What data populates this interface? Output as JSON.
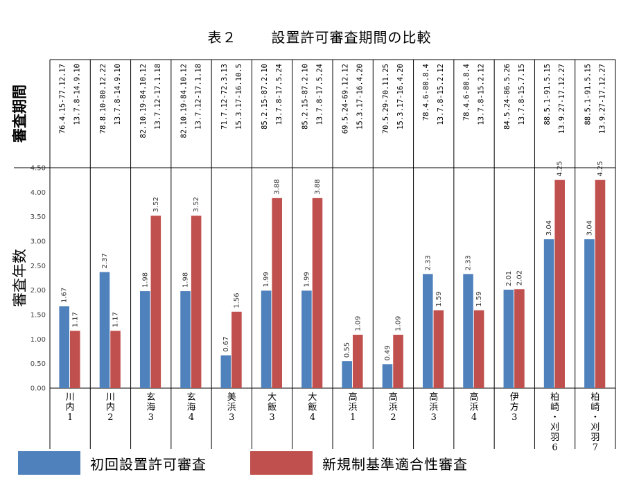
{
  "title": {
    "prefix": "表２",
    "main": "設置許可審査期間の比較"
  },
  "colors": {
    "first_review": "#4F81BD",
    "new_standard": "#C0504D"
  },
  "chart_data": {
    "type": "bar",
    "title": "設置許可審査期間の比較",
    "ylabel": "審査年数",
    "period_row_label": "審査期間",
    "ylim": [
      0,
      4.5
    ],
    "yticks": [
      "0.00",
      "0.50",
      "1.00",
      "1.50",
      "2.00",
      "2.50",
      "3.00",
      "3.50",
      "4.00",
      "4.50"
    ],
    "categories": [
      "川内1",
      "川内2",
      "玄海3",
      "玄海4",
      "美浜3",
      "大飯3",
      "大飯4",
      "高浜1",
      "高浜2",
      "高浜3",
      "高浜4",
      "伊方3",
      "柏崎・刈羽6",
      "柏崎・刈羽7"
    ],
    "category_labels": [
      [
        "川",
        "内",
        "1"
      ],
      [
        "川",
        "内",
        "2"
      ],
      [
        "玄",
        "海",
        "3"
      ],
      [
        "玄",
        "海",
        "4"
      ],
      [
        "美",
        "浜",
        "3"
      ],
      [
        "大",
        "飯",
        "3"
      ],
      [
        "大",
        "飯",
        "4"
      ],
      [
        "高",
        "浜",
        "1"
      ],
      [
        "高",
        "浜",
        "2"
      ],
      [
        "高",
        "浜",
        "3"
      ],
      [
        "高",
        "浜",
        "4"
      ],
      [
        "伊",
        "方",
        "3"
      ],
      [
        "柏",
        "崎",
        "・",
        "刈",
        "羽",
        "6"
      ],
      [
        "柏",
        "崎",
        "・",
        "刈",
        "羽",
        "7"
      ]
    ],
    "periods": [
      [
        "76.4.15-77.12.17",
        "13.7.8-14.9.10"
      ],
      [
        "78.8.10-80.12.22",
        "13.7.8-14.9.10"
      ],
      [
        "82.10.19-84.10.12",
        "13.7.12-17.1.18"
      ],
      [
        "82.10.19-84.10.12",
        "13.7.12-17.1.18"
      ],
      [
        "71.7.12-72.3.13",
        "15.3.17-16.10.5"
      ],
      [
        "85.2.15-87.2.10",
        "13.7.8-17.5.24"
      ],
      [
        "85.2.15-87.2.10",
        "13.7.8-17.5.24"
      ],
      [
        "69.5.24-69.12.12",
        "15.3.17-16.4.20"
      ],
      [
        "70.5.29-70.11.25",
        "15.3.17-16.4.20"
      ],
      [
        "78.4.6-80.8.4",
        "13.7.8-15.2.12"
      ],
      [
        "78.4.6-80.8.4",
        "13.7.8-15.2.12"
      ],
      [
        "84.5.24-86.5.26",
        "13.7.8-15.7.15"
      ],
      [
        "88.5.1-91.5.15",
        "13.9.27-17.12.27"
      ],
      [
        "88.5.1-91.5.15",
        "13.9.27-17.12.27"
      ]
    ],
    "series": [
      {
        "name": "初回設置許可審査",
        "values": [
          1.67,
          2.37,
          1.98,
          1.98,
          0.67,
          1.99,
          1.99,
          0.55,
          0.49,
          2.33,
          2.33,
          2.01,
          3.04,
          3.04
        ],
        "labels": [
          "1.67",
          "2.37",
          "1.98",
          "1.98",
          "0.67",
          "1.99",
          "1.99",
          "0.55",
          "0.49",
          "2.33",
          "2.33",
          "2.01",
          "3.04",
          "3.04"
        ]
      },
      {
        "name": "新規制基準適合性審査",
        "values": [
          1.17,
          1.17,
          3.52,
          3.52,
          1.56,
          3.88,
          3.88,
          1.09,
          1.09,
          1.59,
          1.59,
          2.02,
          4.25,
          4.25
        ],
        "labels": [
          "1.17",
          "1.17",
          "3.52",
          "3.52",
          "1.56",
          "3.88",
          "3.88",
          "1.09",
          "1.09",
          "1.59",
          "1.59",
          "2.02",
          "4.25",
          "4.25"
        ]
      }
    ]
  }
}
